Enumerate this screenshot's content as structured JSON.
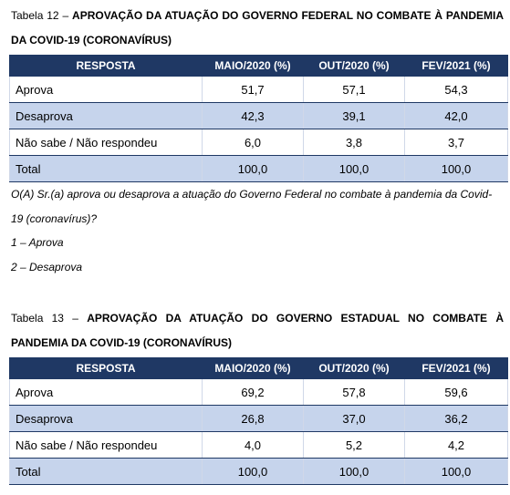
{
  "tables": [
    {
      "label": "Tabela 12 –",
      "title": "APROVAÇÃO DA ATUAÇÃO DO GOVERNO FEDERAL NO COMBATE À PANDEMIA DA COVID-19 (CORONAVÍRUS)",
      "header": [
        "RESPOSTA",
        "MAIO/2020 (%)",
        "OUT/2020 (%)",
        "FEV/2021 (%)"
      ],
      "rows": [
        [
          "Aprova",
          "51,7",
          "57,1",
          "54,3"
        ],
        [
          "Desaprova",
          "42,3",
          "39,1",
          "42,0"
        ],
        [
          "Não sabe / Não respondeu",
          "6,0",
          "3,8",
          "3,7"
        ],
        [
          "Total",
          "100,0",
          "100,0",
          "100,0"
        ]
      ],
      "notes": [
        "O(A) Sr.(a) aprova ou desaprova a atuação do Governo Federal no combate à pandemia da Covid-19 (coronavírus)?",
        "1 – Aprova",
        "2 – Desaprova"
      ]
    },
    {
      "label": "Tabela 13 –",
      "title": "APROVAÇÃO DA ATUAÇÃO DO GOVERNO ESTADUAL NO COMBATE À PANDEMIA DA COVID-19 (CORONAVÍRUS)",
      "header": [
        "RESPOSTA",
        "MAIO/2020 (%)",
        "OUT/2020 (%)",
        "FEV/2021 (%)"
      ],
      "rows": [
        [
          "Aprova",
          "69,2",
          "57,8",
          "59,6"
        ],
        [
          "Desaprova",
          "26,8",
          "37,0",
          "36,2"
        ],
        [
          "Não sabe / Não respondeu",
          "4,0",
          "5,2",
          "4,2"
        ],
        [
          "Total",
          "100,0",
          "100,0",
          "100,0"
        ]
      ],
      "notes": []
    }
  ]
}
